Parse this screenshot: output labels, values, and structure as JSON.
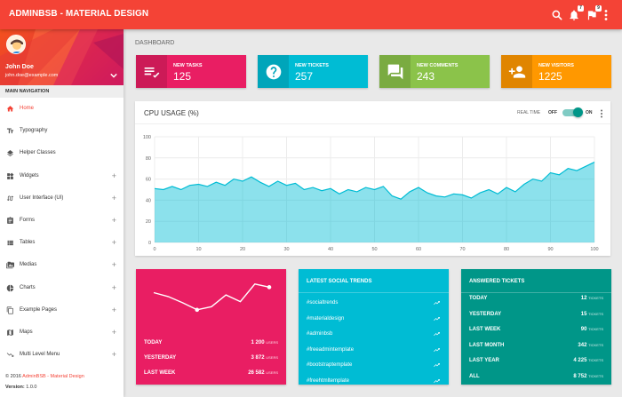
{
  "app": {
    "title": "ADMINBSB - MATERIAL DESIGN",
    "badges": {
      "notifications": "7",
      "tasks": "9"
    },
    "icons": [
      "search-icon",
      "bell-icon",
      "flag-icon",
      "more-vert-icon"
    ]
  },
  "user": {
    "name": "John Doe",
    "email": "john.doe@example.com"
  },
  "sidebar": {
    "header": "MAIN NAVIGATION",
    "items": [
      {
        "label": "Home",
        "icon": "home-icon",
        "expand": ""
      },
      {
        "label": "Typography",
        "icon": "text-fields-icon",
        "expand": ""
      },
      {
        "label": "Helper Classes",
        "icon": "layers-icon",
        "expand": ""
      },
      {
        "label": "Widgets",
        "icon": "widgets-icon",
        "expand": "+"
      },
      {
        "label": "User Interface (UI)",
        "icon": "swap-calls-icon",
        "expand": "+"
      },
      {
        "label": "Forms",
        "icon": "assignment-icon",
        "expand": "+"
      },
      {
        "label": "Tables",
        "icon": "view-list-icon",
        "expand": "+"
      },
      {
        "label": "Medias",
        "icon": "perm-media-icon",
        "expand": "+"
      },
      {
        "label": "Charts",
        "icon": "pie-chart-icon",
        "expand": "+"
      },
      {
        "label": "Example Pages",
        "icon": "content-copy-icon",
        "expand": "+"
      },
      {
        "label": "Maps",
        "icon": "map-icon",
        "expand": "+"
      },
      {
        "label": "Multi Level Menu",
        "icon": "trending-down-icon",
        "expand": "+"
      }
    ],
    "footer": {
      "copyright_prefix": "© 2016",
      "copyright_link": "AdminBSB - Material Design",
      "version_label": "Version:",
      "version_value": "1.0.0"
    }
  },
  "main": {
    "page_title": "DASHBOARD",
    "info_boxes": [
      {
        "label": "NEW TASKS",
        "value": "125",
        "color": "#e91e63",
        "icon": "playlist-check-icon"
      },
      {
        "label": "NEW TICKETS",
        "value": "257",
        "color": "#00bcd4",
        "icon": "help-icon"
      },
      {
        "label": "NEW COMMENTS",
        "value": "243",
        "color": "#8bc34a",
        "icon": "forum-icon"
      },
      {
        "label": "NEW VISITORS",
        "value": "1225",
        "color": "#ff9800",
        "icon": "person-add-icon"
      }
    ],
    "cpu": {
      "title": "CPU USAGE (%)",
      "realtime_label": "REAL TIME",
      "off_label": "OFF",
      "on_label": "ON",
      "realtime_on": true
    },
    "visitors_card": {
      "color": "#e91e63",
      "sparkline": [
        58,
        48,
        32,
        14,
        22,
        52,
        35,
        80,
        72
      ],
      "rows": [
        {
          "label": "TODAY",
          "value": "1 200",
          "unit": "USERS"
        },
        {
          "label": "YESTERDAY",
          "value": "3 872",
          "unit": "USERS"
        },
        {
          "label": "LAST WEEK",
          "value": "26 582",
          "unit": "USERS"
        }
      ]
    },
    "trends_card": {
      "title": "LATEST SOCIAL TRENDS",
      "color": "#00bcd4",
      "items": [
        "#socialtrends",
        "#materialdesign",
        "#adminbsb",
        "#freeadmintemplate",
        "#bootstraptemplate",
        "#freehtmltemplate"
      ]
    },
    "tickets_card": {
      "title": "ANSWERED TICKETS",
      "color": "#009688",
      "rows": [
        {
          "label": "TODAY",
          "value": "12",
          "unit": "TICKETS"
        },
        {
          "label": "YESTERDAY",
          "value": "15",
          "unit": "TICKETS"
        },
        {
          "label": "LAST WEEK",
          "value": "90",
          "unit": "TICKETS"
        },
        {
          "label": "LAST MONTH",
          "value": "342",
          "unit": "TICKETS"
        },
        {
          "label": "LAST YEAR",
          "value": "4 225",
          "unit": "TICKETS"
        },
        {
          "label": "ALL",
          "value": "8 752",
          "unit": "TICKETS"
        }
      ]
    }
  },
  "chart_data": {
    "type": "area",
    "title": "CPU USAGE (%)",
    "xlabel": "",
    "ylabel": "",
    "xlim": [
      0,
      100
    ],
    "ylim": [
      0,
      100
    ],
    "xticks": [
      0,
      10,
      20,
      30,
      40,
      50,
      60,
      70,
      80,
      90,
      100
    ],
    "yticks": [
      0,
      20,
      40,
      60,
      80,
      100
    ],
    "grid": true,
    "color": "#00bcd4",
    "x": [
      0,
      2,
      4,
      6,
      8,
      10,
      12,
      14,
      16,
      18,
      20,
      22,
      24,
      26,
      28,
      30,
      32,
      34,
      36,
      38,
      40,
      42,
      44,
      46,
      48,
      50,
      52,
      54,
      56,
      58,
      60,
      62,
      64,
      66,
      68,
      70,
      72,
      74,
      76,
      78,
      80,
      82,
      84,
      86,
      88,
      90,
      92,
      94,
      96,
      98,
      100
    ],
    "values": [
      51,
      50,
      53,
      50,
      54,
      55,
      53,
      57,
      54,
      60,
      58,
      62,
      57,
      53,
      58,
      54,
      56,
      50,
      52,
      49,
      51,
      46,
      50,
      48,
      52,
      50,
      53,
      44,
      41,
      48,
      52,
      47,
      44,
      43,
      46,
      45,
      42,
      47,
      50,
      46,
      52,
      48,
      55,
      60,
      58,
      66,
      64,
      70,
      68,
      72,
      76
    ]
  }
}
